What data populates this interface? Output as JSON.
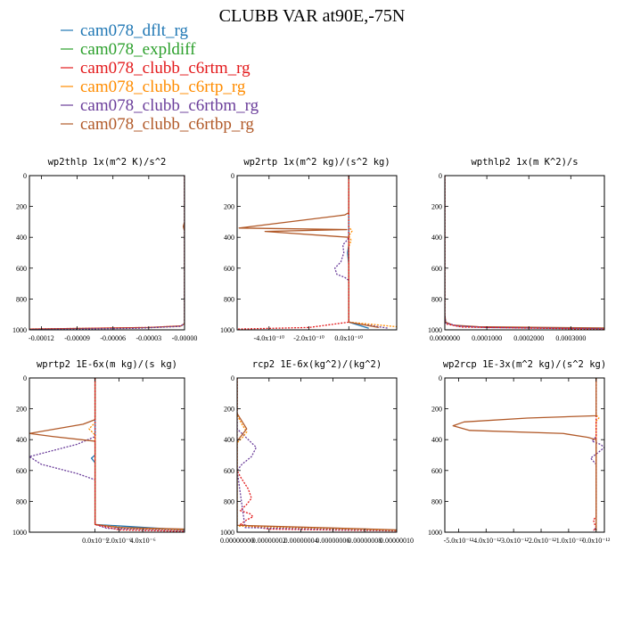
{
  "figure": {
    "title": "CLUBB VAR at90E,-75N"
  },
  "legend": [
    {
      "name": "cam078_dflt_rg",
      "color": "#1f77b4"
    },
    {
      "name": "cam078_expldiff",
      "color": "#2ca02c"
    },
    {
      "name": "cam078_clubb_c6rtm_rg",
      "color": "#e31a1c"
    },
    {
      "name": "cam078_clubb_c6rtp_rg",
      "color": "#ff8c00"
    },
    {
      "name": "cam078_clubb_c6rtbm_rg",
      "color": "#6a3d9a"
    },
    {
      "name": "cam078_clubb_c6rtbp_rg",
      "color": "#b15928"
    }
  ],
  "chart_data": [
    {
      "type": "line",
      "title": "wp2thlp   1x(m^2 K)/s^2",
      "xlim": [
        -0.00013,
        0.0
      ],
      "ylim": [
        0,
        1000
      ],
      "xticks": [
        -0.00012,
        -9e-05,
        -6e-05,
        -3e-05,
        0.0
      ],
      "xtick_labels": [
        "-0.00012",
        "-0.00009",
        "-0.00006",
        "-0.00003",
        "-0.00000"
      ],
      "yticks": [
        0,
        200,
        400,
        600,
        800,
        1000
      ],
      "series": [
        {
          "color": "#b15928",
          "dashed": false,
          "x": [
            0,
            0,
            -1e-06,
            0,
            0,
            0,
            -3e-06,
            -3e-05,
            -0.00013
          ],
          "y": [
            0,
            300,
            330,
            360,
            900,
            960,
            975,
            985,
            995
          ]
        },
        {
          "color": "#e31a1c",
          "dashed": true,
          "x": [
            0,
            0,
            0,
            -3e-06,
            -3e-05,
            -0.00013
          ],
          "y": [
            0,
            360,
            960,
            975,
            985,
            995
          ]
        },
        {
          "color": "#6a3d9a",
          "dashed": true,
          "x": [
            0,
            0,
            0,
            -4e-06,
            -4e-05,
            -0.00013
          ],
          "y": [
            0,
            360,
            960,
            978,
            990,
            998
          ]
        }
      ]
    },
    {
      "type": "line",
      "title": "wp2rtp   1x(m^2 kg)/(s^2 kg)",
      "xlim": [
        -5.6e-10,
        2.4e-10
      ],
      "ylim": [
        0,
        1000
      ],
      "xticks": [
        -4e-10,
        -2e-10,
        0.0
      ],
      "xtick_labels": [
        "-4.0x10⁻¹⁰",
        "-2.0x10⁻¹⁰",
        "0.0x10⁻¹⁰"
      ],
      "yticks": [
        0,
        200,
        400,
        600,
        800,
        1000
      ],
      "series": [
        {
          "color": "#6a3d9a",
          "dashed": true,
          "x": [
            0,
            0,
            -1e-11,
            -3e-11,
            -2.5e-11,
            -4e-11,
            -7e-11,
            -6e-11,
            -2e-11,
            0,
            0,
            2e-10
          ],
          "y": [
            0,
            400,
            420,
            450,
            500,
            560,
            600,
            640,
            660,
            680,
            950,
            990
          ]
        },
        {
          "color": "#1f77b4",
          "dashed": false,
          "x": [
            0,
            0,
            -6e-12,
            -3e-12,
            0,
            0,
            1e-10
          ],
          "y": [
            0,
            450,
            500,
            540,
            580,
            950,
            990
          ]
        },
        {
          "color": "#ff8c00",
          "dashed": true,
          "x": [
            0,
            0,
            1.6e-11,
            0,
            1.2e-11,
            0,
            0,
            2.4e-10
          ],
          "y": [
            0,
            330,
            360,
            390,
            420,
            460,
            950,
            980
          ]
        },
        {
          "color": "#b15928",
          "dashed": false,
          "x": [
            0,
            0,
            -2e-11,
            -5.5e-10,
            -1e-11,
            -4.2e-10,
            0,
            0,
            0,
            1.5e-10
          ],
          "y": [
            0,
            240,
            255,
            340,
            350,
            362,
            400,
            420,
            950,
            985
          ]
        },
        {
          "color": "#e31a1c",
          "dashed": true,
          "x": [
            0,
            0,
            -2e-10,
            -5.6e-10
          ],
          "y": [
            0,
            950,
            985,
            995
          ]
        }
      ]
    },
    {
      "type": "line",
      "title": "wpthlp2   1x(m K^2)/s",
      "xlim": [
        0.0,
        0.00038
      ],
      "ylim": [
        0,
        1000
      ],
      "xticks": [
        0.0,
        0.0001,
        0.0002,
        0.0003
      ],
      "xtick_labels": [
        "0.0000000",
        "0.0001000",
        "0.0002000",
        "0.0003000"
      ],
      "yticks": [
        0,
        200,
        400,
        600,
        800,
        1000
      ],
      "series": [
        {
          "color": "#b15928",
          "dashed": false,
          "x": [
            0,
            0,
            2e-06,
            2e-05,
            8e-05,
            0.00038
          ],
          "y": [
            0,
            900,
            950,
            970,
            980,
            988
          ]
        },
        {
          "color": "#6a3d9a",
          "dashed": true,
          "x": [
            0,
            0,
            2e-06,
            3e-05,
            0.0001,
            0.00038
          ],
          "y": [
            0,
            900,
            955,
            975,
            985,
            992
          ]
        },
        {
          "color": "#e31a1c",
          "dashed": true,
          "x": [
            0,
            0,
            4e-05,
            0.00038
          ],
          "y": [
            0,
            960,
            982,
            996
          ]
        }
      ]
    },
    {
      "type": "line",
      "title": "wprtp2   1E-6x(m kg)/(s kg)",
      "xlim": [
        -5.5e-07,
        7.5e-07
      ],
      "ylim": [
        0,
        1000
      ],
      "xticks": [
        0.0,
        2e-07,
        4e-07
      ],
      "xtick_labels": [
        "0.0x10⁻⁶",
        "2.0x10⁻⁶",
        "4.0x10⁻⁶"
      ],
      "yticks": [
        0,
        200,
        400,
        600,
        800,
        1000
      ],
      "series": [
        {
          "color": "#6a3d9a",
          "dashed": true,
          "x": [
            0,
            0,
            -1.5e-07,
            -5.5e-07,
            -4.5e-07,
            -1.5e-07,
            0,
            0,
            1e-07,
            7.5e-07
          ],
          "y": [
            0,
            380,
            430,
            510,
            560,
            620,
            660,
            950,
            975,
            990
          ]
        },
        {
          "color": "#1f77b4",
          "dashed": false,
          "x": [
            0,
            0,
            -3e-08,
            0,
            0,
            7.5e-07
          ],
          "y": [
            0,
            500,
            520,
            550,
            950,
            985
          ]
        },
        {
          "color": "#ff8c00",
          "dashed": true,
          "x": [
            0,
            0,
            -5e-08,
            0,
            0,
            3e-07,
            7.5e-07
          ],
          "y": [
            0,
            290,
            330,
            370,
            950,
            975,
            985
          ]
        },
        {
          "color": "#b15928",
          "dashed": false,
          "x": [
            0,
            0,
            -1e-07,
            -5.5e-07,
            -3.5e-07,
            0,
            0,
            0,
            2e-07,
            7.5e-07
          ],
          "y": [
            0,
            270,
            300,
            360,
            380,
            410,
            500,
            950,
            970,
            980
          ]
        },
        {
          "color": "#e31a1c",
          "dashed": true,
          "x": [
            0,
            0,
            2e-07,
            7.5e-07
          ],
          "y": [
            0,
            950,
            985,
            995
          ]
        }
      ]
    },
    {
      "type": "line",
      "title": "rcp2   1E-6x(kg^2)/(kg^2)",
      "xlim": [
        0.0,
        1e-07
      ],
      "ylim": [
        0,
        1000
      ],
      "xticks": [
        0.0,
        2e-08,
        4e-08,
        6e-08,
        8e-08,
        1e-07
      ],
      "xtick_labels": [
        "0.00000000",
        "0.00000002",
        "0.00000004",
        "0.00000006",
        "0.00000008",
        "0.00000010"
      ],
      "yticks": [
        0,
        200,
        400,
        600,
        800,
        1000
      ],
      "series": [
        {
          "color": "#e31a1c",
          "dashed": true,
          "x": [
            0,
            0,
            2e-09,
            7e-09,
            9e-09,
            6e-09,
            2e-09,
            8e-09,
            1e-08,
            6e-09,
            2e-09,
            2e-08,
            1e-07
          ],
          "y": [
            0,
            600,
            640,
            720,
            780,
            820,
            860,
            880,
            900,
            920,
            950,
            980,
            992
          ]
        },
        {
          "color": "#6a3d9a",
          "dashed": true,
          "x": [
            0,
            0,
            5e-09,
            1.2e-08,
            9e-09,
            3e-09,
            0,
            5e-09,
            1e-07
          ],
          "y": [
            0,
            330,
            380,
            450,
            510,
            560,
            600,
            970,
            990
          ]
        },
        {
          "color": "#ff8c00",
          "dashed": true,
          "x": [
            0,
            0,
            3e-09,
            6e-09,
            3e-09,
            0,
            0,
            1e-07
          ],
          "y": [
            0,
            240,
            300,
            350,
            390,
            420,
            960,
            988
          ]
        },
        {
          "color": "#b15928",
          "dashed": false,
          "x": [
            0,
            0,
            3e-09,
            6e-09,
            3e-09,
            0,
            0,
            1e-07
          ],
          "y": [
            0,
            230,
            280,
            330,
            370,
            410,
            955,
            985
          ]
        }
      ]
    },
    {
      "type": "line",
      "title": "wp2rcp   1E-3x(m^2 kg)/(s^2 kg)",
      "xlim": [
        -5.5e-09,
        3e-10
      ],
      "ylim": [
        0,
        1000
      ],
      "xticks": [
        -5e-09,
        -4e-09,
        -3e-09,
        -2e-09,
        -1e-09,
        0.0
      ],
      "xtick_labels": [
        "-5.0x10⁻¹²",
        "-4.0x10⁻¹²",
        "-3.0x10⁻¹²",
        "-2.0x10⁻¹²",
        "-1.0x10⁻¹²",
        "0.0x10⁻¹²"
      ],
      "yticks": [
        0,
        200,
        400,
        600,
        800,
        1000
      ],
      "series": [
        {
          "color": "#6a3d9a",
          "dashed": true,
          "x": [
            0,
            0,
            -1.5e-10,
            1.5e-10,
            3e-10,
            1e-10,
            -2e-10,
            0,
            0,
            -1e-10
          ],
          "y": [
            0,
            380,
            410,
            430,
            450,
            480,
            520,
            560,
            970,
            990
          ]
        },
        {
          "color": "#ff8c00",
          "dashed": true,
          "x": [
            0,
            0,
            1e-10,
            0,
            0
          ],
          "y": [
            0,
            240,
            260,
            280,
            990
          ]
        },
        {
          "color": "#e31a1c",
          "dashed": true,
          "x": [
            0,
            0,
            -1e-10,
            -5e-11,
            0,
            -1e-10
          ],
          "y": [
            0,
            900,
            920,
            950,
            970,
            990
          ]
        },
        {
          "color": "#b15928",
          "dashed": false,
          "x": [
            0,
            0,
            -2.5e-09,
            -4.8e-09,
            -5.2e-09,
            -4.6e-09,
            -1.2e-09,
            -3e-10,
            0,
            0
          ],
          "y": [
            0,
            245,
            260,
            285,
            310,
            340,
            360,
            385,
            400,
            990
          ]
        }
      ]
    }
  ]
}
